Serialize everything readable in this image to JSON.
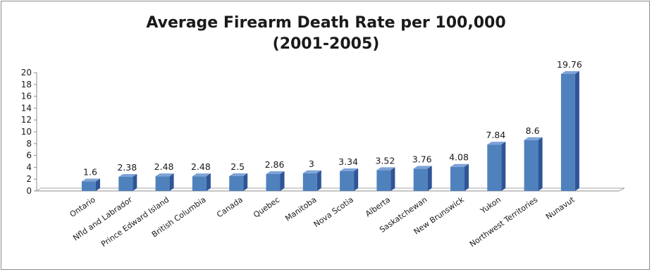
{
  "chart_data": {
    "type": "bar",
    "title_line1": "Average Firearm Death Rate per 100,000",
    "title_line2": "(2001-2005)",
    "categories": [
      "Ontario",
      "Nfld and Labrador",
      "Prince Edward Island",
      "British Columbia",
      "Canada",
      "Quebec",
      "Manitoba",
      "Nova Scotia",
      "Alberta",
      "Saskatchewan",
      "New Brunswick",
      "Yukon",
      "Northwest Territories",
      "Nunavut"
    ],
    "values": [
      1.6,
      2.38,
      2.48,
      2.48,
      2.5,
      2.86,
      3,
      3.34,
      3.52,
      3.76,
      4.08,
      7.84,
      8.6,
      19.76
    ],
    "value_labels": [
      "1.6",
      "2.38",
      "2.48",
      "2.48",
      "2.5",
      "2.86",
      "3",
      "3.34",
      "3.52",
      "3.76",
      "4.08",
      "7.84",
      "8.6",
      "19.76"
    ],
    "yticks": [
      "0",
      "2",
      "4",
      "6",
      "8",
      "10",
      "12",
      "14",
      "16",
      "18",
      "20"
    ],
    "ylim": [
      0,
      20
    ],
    "grid": false,
    "legend": "none",
    "bar_color": "#4f81bd"
  }
}
